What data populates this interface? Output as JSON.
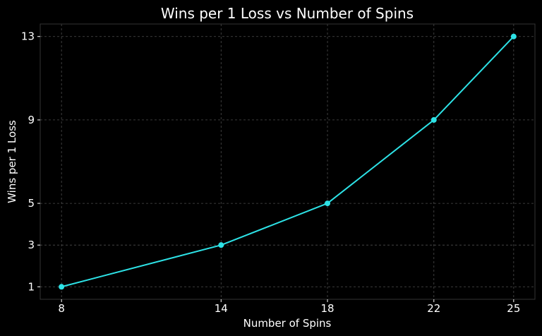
{
  "chart_data": {
    "type": "line",
    "title": "Wins per 1 Loss vs Number of Spins",
    "xlabel": "Number of Spins",
    "ylabel": "Wins per 1 Loss",
    "xticks": [
      8,
      14,
      18,
      22,
      25
    ],
    "yticks": [
      1,
      3,
      5,
      9,
      13
    ],
    "xlim": [
      7.2,
      25.8
    ],
    "ylim": [
      0.4,
      13.6
    ],
    "grid": true,
    "series": [
      {
        "color": "#2de2e6",
        "x": [
          8,
          14,
          18,
          22,
          25
        ],
        "y": [
          1,
          3,
          5,
          9,
          13
        ]
      }
    ]
  }
}
